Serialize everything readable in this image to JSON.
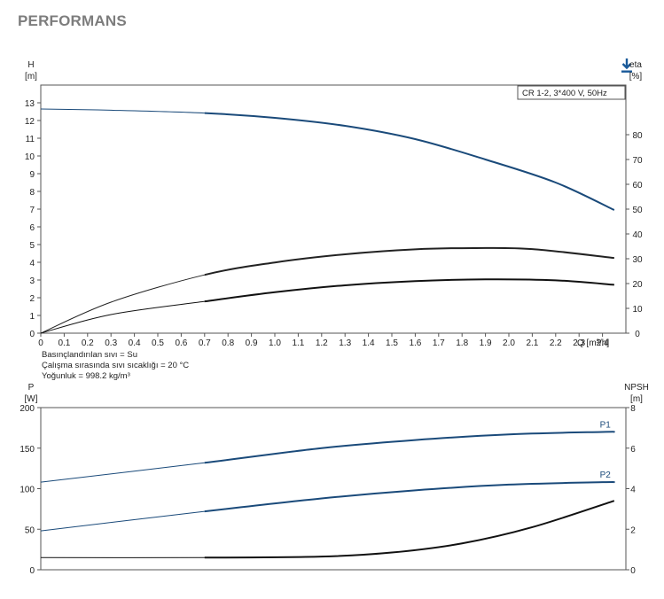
{
  "page": {
    "title": "PERFORMANS",
    "download_icon": "download-icon",
    "accent": "#1a4a7a"
  },
  "chart_data": [
    {
      "type": "line",
      "legend": "CR 1-2, 3*400 V, 50Hz",
      "left_axis": {
        "name": "H",
        "unit": "[m]",
        "ylim": [
          0,
          14
        ],
        "ticks": [
          0,
          1,
          2,
          3,
          4,
          5,
          6,
          7,
          8,
          9,
          10,
          11,
          12,
          13
        ]
      },
      "right_axis": {
        "name": "eta",
        "unit": "[%]",
        "ylim": [
          0,
          100
        ],
        "ticks": [
          0,
          10,
          20,
          30,
          40,
          50,
          60,
          70,
          80
        ]
      },
      "x_axis": {
        "name": "Q",
        "unit": "[m³/h]",
        "xlim": [
          0,
          2.5
        ],
        "ticks": [
          "0",
          "0.1",
          "0.2",
          "0.3",
          "0.4",
          "0.5",
          "0.6",
          "0.7",
          "0.8",
          "0.9",
          "1.0",
          "1.1",
          "1.2",
          "1.3",
          "1.4",
          "1.5",
          "1.6",
          "1.7",
          "1.8",
          "1.9",
          "2.0",
          "2.1",
          "2.2",
          "2.3",
          "2.4"
        ]
      },
      "notes": [
        "Basınçlandırılan sıvı = Su",
        "Çalışma sırasında sıvı sıcaklığı = 20 °C",
        "Yoğunluk = 998.2 kg/m³"
      ],
      "series": [
        {
          "axis": "left",
          "color": "#1a4a7a",
          "x": [
            0,
            0.3,
            0.7,
            1.0,
            1.3,
            1.6,
            1.9,
            2.2,
            2.45
          ],
          "values": [
            12.65,
            12.58,
            12.42,
            12.15,
            11.7,
            10.95,
            9.8,
            8.5,
            6.95
          ]
        },
        {
          "axis": "right",
          "color": "#222222",
          "x": [
            0,
            0.3,
            0.7,
            1.0,
            1.3,
            1.6,
            1.85,
            2.1,
            2.45
          ],
          "values": [
            0,
            12.5,
            23.5,
            28.5,
            31.8,
            33.8,
            34.3,
            33.9,
            30.3
          ]
        },
        {
          "axis": "right",
          "color": "#111111",
          "x": [
            0,
            0.3,
            0.7,
            1.0,
            1.3,
            1.6,
            1.9,
            2.2,
            2.45
          ],
          "values": [
            0,
            7.5,
            12.8,
            16.5,
            19.3,
            21,
            21.7,
            21.3,
            19.5
          ]
        }
      ]
    },
    {
      "type": "line",
      "left_axis": {
        "name": "P",
        "unit": "[W]",
        "ylim": [
          0,
          200
        ],
        "ticks": [
          0,
          50,
          100,
          150,
          200
        ]
      },
      "right_axis": {
        "name": "NPSH",
        "unit": "[m]",
        "ylim": [
          0,
          8
        ],
        "ticks": [
          0,
          2,
          4,
          6,
          8
        ]
      },
      "x_axis": {
        "xlim": [
          0,
          2.5
        ]
      },
      "series": [
        {
          "name": "P1",
          "axis": "left",
          "color": "#1a4a7a",
          "x": [
            0,
            0.7,
            1.2,
            1.6,
            2.0,
            2.4,
            2.45
          ],
          "values": [
            108,
            132,
            150,
            160,
            167,
            170,
            170
          ]
        },
        {
          "name": "P2",
          "axis": "left",
          "color": "#1a4a7a",
          "x": [
            0,
            0.7,
            1.2,
            1.6,
            2.0,
            2.4,
            2.45
          ],
          "values": [
            48,
            72,
            88,
            98,
            105,
            108,
            108
          ]
        },
        {
          "axis": "right",
          "color": "#111111",
          "x": [
            0,
            0.7,
            1.2,
            1.5,
            1.8,
            2.1,
            2.45
          ],
          "values": [
            0.6,
            0.6,
            0.65,
            0.85,
            1.3,
            2.1,
            3.4
          ]
        }
      ]
    }
  ]
}
